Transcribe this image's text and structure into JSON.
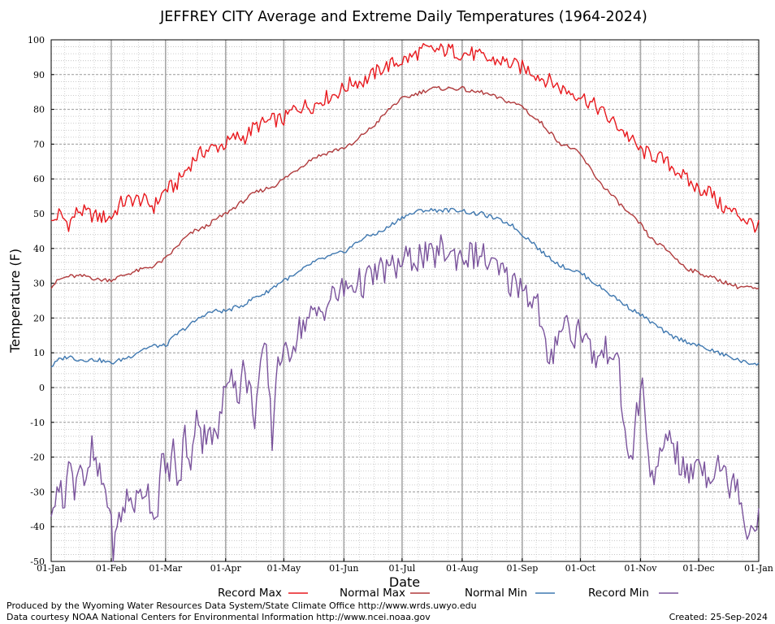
{
  "chart_data": {
    "type": "line",
    "title": "JEFFREY CITY Average and Extreme Daily Temperatures (1964-2024)",
    "xlabel": "Date",
    "ylabel": "Temperature (F)",
    "ylim": [
      -50,
      100
    ],
    "yticks": [
      100,
      90,
      80,
      70,
      60,
      50,
      40,
      30,
      20,
      10,
      0,
      -10,
      -20,
      -30,
      -40,
      -50
    ],
    "xlim": [
      1,
      366
    ],
    "xticks": [
      {
        "label": "01-Jan",
        "day": 1
      },
      {
        "label": "01-Feb",
        "day": 32
      },
      {
        "label": "01-Mar",
        "day": 60
      },
      {
        "label": "01-Apr",
        "day": 91
      },
      {
        "label": "01-May",
        "day": 121
      },
      {
        "label": "01-Jun",
        "day": 152
      },
      {
        "label": "01-Jul",
        "day": 182
      },
      {
        "label": "01-Aug",
        "day": 213
      },
      {
        "label": "01-Sep",
        "day": 244
      },
      {
        "label": "01-Oct",
        "day": 274
      },
      {
        "label": "01-Nov",
        "day": 305
      },
      {
        "label": "01-Dec",
        "day": 335
      },
      {
        "label": "01-Jan",
        "day": 366
      }
    ],
    "grid": true,
    "legend_position": "bottom",
    "series": [
      {
        "name": "Record Max",
        "color": "#e8191e",
        "x": [
          1,
          5,
          10,
          15,
          20,
          25,
          32,
          37,
          42,
          48,
          54,
          60,
          65,
          70,
          75,
          80,
          85,
          91,
          96,
          101,
          106,
          111,
          116,
          121,
          126,
          131,
          136,
          141,
          146,
          152,
          157,
          162,
          167,
          172,
          177,
          182,
          187,
          192,
          197,
          202,
          207,
          213,
          218,
          223,
          228,
          233,
          238,
          244,
          249,
          254,
          259,
          264,
          269,
          274,
          279,
          284,
          289,
          294,
          299,
          305,
          310,
          315,
          320,
          325,
          330,
          335,
          340,
          345,
          350,
          355,
          360,
          366
        ],
        "values": [
          47,
          50,
          47,
          51,
          50,
          49,
          49,
          53,
          54,
          54,
          52,
          57,
          58,
          62,
          66,
          68,
          69,
          70,
          72,
          72,
          75,
          76,
          77,
          77,
          80,
          81,
          81,
          83,
          84,
          86,
          88,
          88,
          90,
          92,
          93,
          94,
          95,
          97,
          97,
          97,
          97,
          96,
          96,
          95,
          94,
          94,
          93,
          92,
          91,
          89,
          88,
          86,
          85,
          84,
          82,
          80,
          77,
          75,
          72,
          68,
          67,
          66,
          64,
          62,
          59,
          57,
          57,
          53,
          51,
          50,
          48,
          46
        ]
      },
      {
        "name": "Normal Max",
        "color": "#b03a3c",
        "x": [
          1,
          5,
          10,
          15,
          20,
          25,
          32,
          37,
          42,
          48,
          54,
          60,
          65,
          70,
          75,
          80,
          85,
          91,
          96,
          101,
          106,
          111,
          116,
          121,
          126,
          131,
          136,
          141,
          146,
          152,
          157,
          162,
          167,
          172,
          177,
          182,
          187,
          192,
          197,
          202,
          207,
          213,
          218,
          223,
          228,
          233,
          238,
          244,
          249,
          254,
          259,
          264,
          269,
          274,
          279,
          284,
          289,
          294,
          299,
          305,
          310,
          315,
          320,
          325,
          330,
          335,
          340,
          345,
          350,
          355,
          360,
          366
        ],
        "values": [
          29,
          31,
          32,
          32,
          32,
          31,
          31,
          32,
          33,
          34,
          35,
          37,
          40,
          43,
          45,
          46,
          48,
          50,
          52,
          54,
          56,
          57,
          58,
          60,
          62,
          64,
          66,
          67,
          68,
          69,
          70,
          73,
          75,
          78,
          81,
          83,
          84,
          85,
          86,
          86,
          86,
          86,
          85,
          85,
          84,
          83,
          82,
          81,
          78,
          76,
          73,
          70,
          69,
          67,
          63,
          59,
          56,
          53,
          50,
          47,
          43,
          41,
          39,
          36,
          34,
          33,
          32,
          31,
          30,
          29,
          29,
          28
        ]
      },
      {
        "name": "Normal Min",
        "color": "#3f78b0",
        "x": [
          1,
          5,
          10,
          15,
          20,
          25,
          32,
          37,
          42,
          48,
          54,
          60,
          65,
          70,
          75,
          80,
          85,
          91,
          96,
          101,
          106,
          111,
          116,
          121,
          126,
          131,
          136,
          141,
          146,
          152,
          157,
          162,
          167,
          172,
          177,
          182,
          187,
          192,
          197,
          202,
          207,
          213,
          218,
          223,
          228,
          233,
          238,
          244,
          249,
          254,
          259,
          264,
          269,
          274,
          279,
          284,
          289,
          294,
          299,
          305,
          310,
          315,
          320,
          325,
          330,
          335,
          340,
          345,
          350,
          355,
          360,
          366
        ],
        "values": [
          6,
          8,
          9,
          8,
          8,
          8,
          7,
          8,
          9,
          11,
          12,
          12,
          15,
          17,
          19,
          21,
          22,
          22,
          23,
          24,
          26,
          27,
          29,
          31,
          32,
          34,
          36,
          37,
          38,
          39,
          41,
          43,
          44,
          45,
          47,
          49,
          50,
          51,
          51,
          51,
          51,
          51,
          50,
          50,
          49,
          48,
          47,
          44,
          42,
          39,
          37,
          35,
          34,
          33,
          31,
          29,
          27,
          25,
          23,
          21,
          19,
          17,
          15,
          14,
          13,
          12,
          11,
          10,
          9,
          8,
          7,
          7
        ]
      },
      {
        "name": "Record Min",
        "color": "#7a539c",
        "x": [
          1,
          4,
          7,
          10,
          13,
          16,
          19,
          22,
          25,
          28,
          31,
          33,
          36,
          40,
          45,
          50,
          55,
          58,
          61,
          64,
          67,
          70,
          73,
          76,
          79,
          82,
          86,
          91,
          94,
          97,
          100,
          103,
          106,
          109,
          112,
          115,
          118,
          121,
          125,
          130,
          135,
          140,
          146,
          152,
          157,
          162,
          167,
          172,
          177,
          182,
          187,
          192,
          197,
          202,
          207,
          213,
          218,
          223,
          228,
          233,
          238,
          244,
          248,
          252,
          255,
          258,
          262,
          266,
          270,
          274,
          278,
          282,
          286,
          290,
          294,
          297,
          300,
          303,
          306,
          309,
          312,
          316,
          320,
          325,
          330,
          335,
          340,
          345,
          350,
          355,
          360,
          366
        ],
        "values": [
          -40,
          -25,
          -34,
          -22,
          -28,
          -20,
          -30,
          -18,
          -25,
          -28,
          -34,
          -48,
          -38,
          -32,
          -33,
          -28,
          -38,
          -22,
          -25,
          -18,
          -30,
          -12,
          -26,
          -4,
          -16,
          -10,
          -16,
          0,
          8,
          -4,
          5,
          0,
          -8,
          6,
          10,
          -15,
          10,
          8,
          12,
          18,
          20,
          22,
          26,
          28,
          30,
          30,
          32,
          34,
          34,
          36,
          37,
          38,
          37,
          40,
          38,
          38,
          38,
          38,
          35,
          33,
          30,
          30,
          26,
          24,
          14,
          4,
          16,
          20,
          14,
          18,
          12,
          8,
          10,
          12,
          4,
          -14,
          -22,
          -8,
          0,
          -18,
          -30,
          -18,
          -12,
          -22,
          -26,
          -20,
          -26,
          -20,
          -28,
          -26,
          -42,
          -36
        ]
      }
    ]
  },
  "footer": {
    "line1": "Produced by the Wyoming Water Resources Data System/State Climate Office http://www.wrds.uwyo.edu",
    "line2": "Data courtesy NOAA National Centers for Environmental Information http://www.ncei.noaa.gov",
    "created": "Created:  25-Sep-2024"
  }
}
